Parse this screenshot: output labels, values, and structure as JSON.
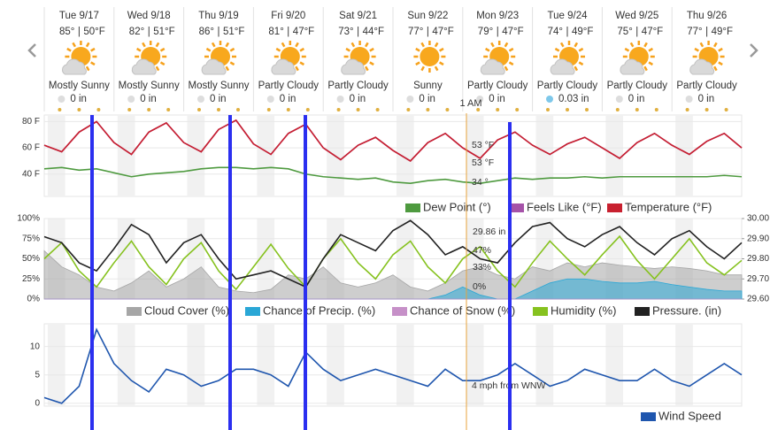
{
  "forecast_days": [
    {
      "label": "Tue 9/17",
      "high": "85°",
      "low": "50°F",
      "condition": "Mostly Sunny",
      "precip": "0 in"
    },
    {
      "label": "Wed 9/18",
      "high": "82°",
      "low": "51°F",
      "condition": "Mostly Sunny",
      "precip": "0 in"
    },
    {
      "label": "Thu 9/19",
      "high": "86°",
      "low": "51°F",
      "condition": "Mostly Sunny",
      "precip": "0 in"
    },
    {
      "label": "Fri 9/20",
      "high": "81°",
      "low": "47°F",
      "condition": "Partly Cloudy",
      "precip": "0 in"
    },
    {
      "label": "Sat 9/21",
      "high": "73°",
      "low": "44°F",
      "condition": "Partly Cloudy",
      "precip": "0 in"
    },
    {
      "label": "Sun 9/22",
      "high": "77°",
      "low": "47°F",
      "condition": "Sunny",
      "precip": "0 in"
    },
    {
      "label": "Mon 9/23",
      "high": "79°",
      "low": "47°F",
      "condition": "Partly Cloudy",
      "precip": "0 in"
    },
    {
      "label": "Tue 9/24",
      "high": "74°",
      "low": "49°F",
      "condition": "Partly Cloudy",
      "precip": "0.03 in"
    },
    {
      "label": "Wed 9/25",
      "high": "75°",
      "low": "47°F",
      "condition": "Partly Cloudy",
      "precip": "0 in"
    },
    {
      "label": "Thu 9/26",
      "high": "77°",
      "low": "49°F",
      "condition": "Partly Cloudy",
      "precip": "0 in"
    }
  ],
  "separator": "|",
  "hover_time": "1 AM",
  "chart_data": [
    {
      "type": "line",
      "x": [
        0,
        6,
        12,
        18,
        24,
        30,
        36,
        42,
        48,
        54,
        60,
        66,
        72,
        78,
        84,
        90,
        96,
        102,
        108,
        114,
        120,
        126,
        132,
        138,
        144,
        150,
        156,
        162,
        168,
        174,
        180,
        186,
        192,
        198,
        204,
        210,
        216,
        222,
        228,
        234,
        240
      ],
      "xlim": [
        0,
        240
      ],
      "ylim": [
        23,
        85
      ],
      "yticks": [
        {
          "value": 40,
          "label": "40 F"
        },
        {
          "value": 60,
          "label": "60 F"
        },
        {
          "value": 80,
          "label": "80 F"
        }
      ],
      "series": [
        {
          "name": "Dew Point (°)",
          "color": "#4e9a3f",
          "values": [
            44,
            45,
            43,
            44,
            41,
            38,
            40,
            41,
            42,
            44,
            45,
            45,
            44,
            45,
            44,
            40,
            38,
            37,
            36,
            37,
            34,
            33,
            35,
            36,
            34,
            33,
            35,
            37,
            36,
            37,
            37,
            38,
            37,
            38,
            38,
            38,
            38,
            38,
            38,
            39,
            38
          ]
        },
        {
          "name": "Feels Like (°F)",
          "color": "#a552a8",
          "values": [
            62,
            57,
            72,
            80,
            64,
            55,
            72,
            79,
            64,
            57,
            74,
            81,
            63,
            55,
            71,
            78,
            60,
            51,
            62,
            68,
            58,
            50,
            64,
            71,
            60,
            52,
            66,
            72,
            62,
            55,
            63,
            68,
            60,
            52,
            64,
            71,
            62,
            55,
            65,
            71,
            60
          ]
        },
        {
          "name": "Temperature (°F)",
          "color": "#c8202f",
          "values": [
            62,
            57,
            72,
            80,
            64,
            55,
            72,
            79,
            64,
            57,
            74,
            81,
            63,
            55,
            71,
            78,
            60,
            51,
            62,
            68,
            58,
            50,
            64,
            71,
            60,
            52,
            66,
            72,
            62,
            55,
            63,
            68,
            60,
            52,
            64,
            71,
            62,
            55,
            65,
            71,
            60
          ]
        }
      ],
      "annotations": [
        "53 °F",
        "53 °F",
        "34 °"
      ]
    },
    {
      "type": "line",
      "x": [
        0,
        6,
        12,
        18,
        24,
        30,
        36,
        42,
        48,
        54,
        60,
        66,
        72,
        78,
        84,
        90,
        96,
        102,
        108,
        114,
        120,
        126,
        132,
        138,
        144,
        150,
        156,
        162,
        168,
        174,
        180,
        186,
        192,
        198,
        204,
        210,
        216,
        222,
        228,
        234,
        240
      ],
      "xlim": [
        0,
        240
      ],
      "ylim": [
        0,
        100
      ],
      "yticks": [
        {
          "value": 0,
          "label": "0%"
        },
        {
          "value": 25,
          "label": "25%"
        },
        {
          "value": 50,
          "label": "50%"
        },
        {
          "value": 75,
          "label": "75%"
        },
        {
          "value": 100,
          "label": "100%"
        }
      ],
      "y2lim": [
        29.6,
        30.0
      ],
      "y2ticks": [
        {
          "value": 29.6,
          "label": "29.60"
        },
        {
          "value": 29.7,
          "label": "29.70"
        },
        {
          "value": 29.8,
          "label": "29.80"
        },
        {
          "value": 29.9,
          "label": "29.90"
        },
        {
          "value": 30.0,
          "label": "30.00"
        }
      ],
      "series": [
        {
          "name": "Cloud Cover (%)",
          "color": "#a6a6a6",
          "area": true,
          "values": [
            60,
            40,
            30,
            15,
            10,
            20,
            35,
            15,
            25,
            40,
            15,
            10,
            8,
            12,
            30,
            25,
            40,
            20,
            15,
            20,
            30,
            15,
            10,
            20,
            35,
            40,
            30,
            25,
            40,
            35,
            45,
            40,
            45,
            42,
            40,
            38,
            40,
            38,
            35,
            30,
            30
          ]
        },
        {
          "name": "Chance of Precip. (%)",
          "color": "#2aa7d6",
          "area": true,
          "values": [
            0,
            0,
            0,
            0,
            0,
            0,
            0,
            0,
            0,
            0,
            0,
            0,
            0,
            0,
            0,
            0,
            0,
            0,
            0,
            0,
            0,
            0,
            0,
            5,
            15,
            5,
            0,
            0,
            10,
            20,
            25,
            25,
            22,
            20,
            20,
            22,
            18,
            15,
            12,
            10,
            10
          ]
        },
        {
          "name": "Chance of Snow (%)",
          "color": "#c690c8",
          "area": true,
          "values": [
            0,
            0,
            0,
            0,
            0,
            0,
            0,
            0,
            0,
            0,
            0,
            0,
            0,
            0,
            0,
            0,
            0,
            0,
            0,
            0,
            0,
            0,
            0,
            0,
            0,
            0,
            0,
            0,
            0,
            0,
            0,
            0,
            0,
            0,
            0,
            0,
            0,
            0,
            0,
            0,
            0
          ]
        },
        {
          "name": "Humidity (%)",
          "color": "#86c21f",
          "values": [
            50,
            70,
            35,
            15,
            45,
            72,
            40,
            18,
            50,
            70,
            35,
            12,
            40,
            68,
            38,
            15,
            50,
            75,
            45,
            25,
            55,
            72,
            40,
            20,
            50,
            65,
            35,
            15,
            45,
            72,
            50,
            30,
            55,
            78,
            48,
            25,
            50,
            75,
            45,
            30,
            48
          ]
        },
        {
          "name": "Pressure. (in)",
          "color": "#222222",
          "axis": "y2",
          "values": [
            29.91,
            29.88,
            29.78,
            29.74,
            29.85,
            29.97,
            29.92,
            29.78,
            29.88,
            29.92,
            29.8,
            29.7,
            29.72,
            29.74,
            29.7,
            29.66,
            29.8,
            29.92,
            29.88,
            29.84,
            29.94,
            29.99,
            29.92,
            29.82,
            29.86,
            29.8,
            29.78,
            29.88,
            29.96,
            29.98,
            29.9,
            29.86,
            29.92,
            29.96,
            29.88,
            29.82,
            29.9,
            29.94,
            29.86,
            29.8,
            29.88
          ]
        }
      ],
      "annotations": [
        "29.86 in",
        "47%",
        "33%",
        "0%"
      ]
    },
    {
      "type": "line",
      "x": [
        0,
        6,
        12,
        18,
        24,
        30,
        36,
        42,
        48,
        54,
        60,
        66,
        72,
        78,
        84,
        90,
        96,
        102,
        108,
        114,
        120,
        126,
        132,
        138,
        144,
        150,
        156,
        162,
        168,
        174,
        180,
        186,
        192,
        198,
        204,
        210,
        216,
        222,
        228,
        234,
        240
      ],
      "xlim": [
        0,
        240
      ],
      "ylim": [
        -0.5,
        14
      ],
      "yticks": [
        0,
        5,
        10
      ],
      "series": [
        {
          "name": "Wind Speed",
          "color": "#1f56ae",
          "values": [
            1,
            0,
            3,
            13,
            7,
            4,
            2,
            6,
            5,
            3,
            4,
            6,
            6,
            5,
            3,
            9,
            6,
            4,
            5,
            6,
            5,
            4,
            3,
            6,
            4,
            4,
            5,
            7,
            5,
            3,
            4,
            6,
            5,
            4,
            4,
            6,
            4,
            3,
            5,
            7,
            5
          ]
        }
      ],
      "annotations": [
        "4 mph from WNW"
      ]
    }
  ]
}
